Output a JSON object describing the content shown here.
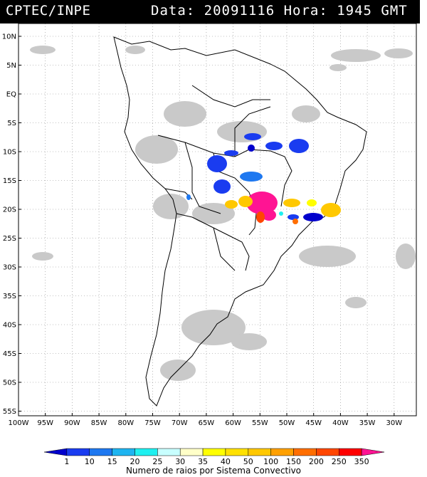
{
  "header": {
    "org": "CPTEC/INPE",
    "info": "Data: 20091116 Hora: 1945 GMT"
  },
  "map": {
    "lat_labels": [
      "10N",
      "5N",
      "EQ",
      "5S",
      "10S",
      "15S",
      "20S",
      "25S",
      "30S",
      "35S",
      "40S",
      "45S",
      "50S",
      "55S"
    ],
    "lon_labels": [
      "100W",
      "95W",
      "90W",
      "85W",
      "80W",
      "75W",
      "70W",
      "65W",
      "60W",
      "55W",
      "50W",
      "45W",
      "40W",
      "35W",
      "30W"
    ],
    "lat_range": [
      -56,
      12
    ],
    "lon_range": [
      -100,
      -27
    ],
    "grid": true
  },
  "legend": {
    "ticks": [
      "1",
      "10",
      "15",
      "20",
      "25",
      "30",
      "35",
      "40",
      "50",
      "100",
      "150",
      "200",
      "250",
      "350"
    ],
    "colors": [
      "#0000cc",
      "#1a3cf0",
      "#1e78f0",
      "#1eb4f0",
      "#1ef0f0",
      "#c8ffff",
      "#ffffc8",
      "#ffff00",
      "#ffe100",
      "#ffc800",
      "#ffa000",
      "#ff6e00",
      "#ff4600",
      "#ff0000",
      "#ff1493"
    ],
    "caption": "Numero de raios por Sistema Convectivo"
  }
}
